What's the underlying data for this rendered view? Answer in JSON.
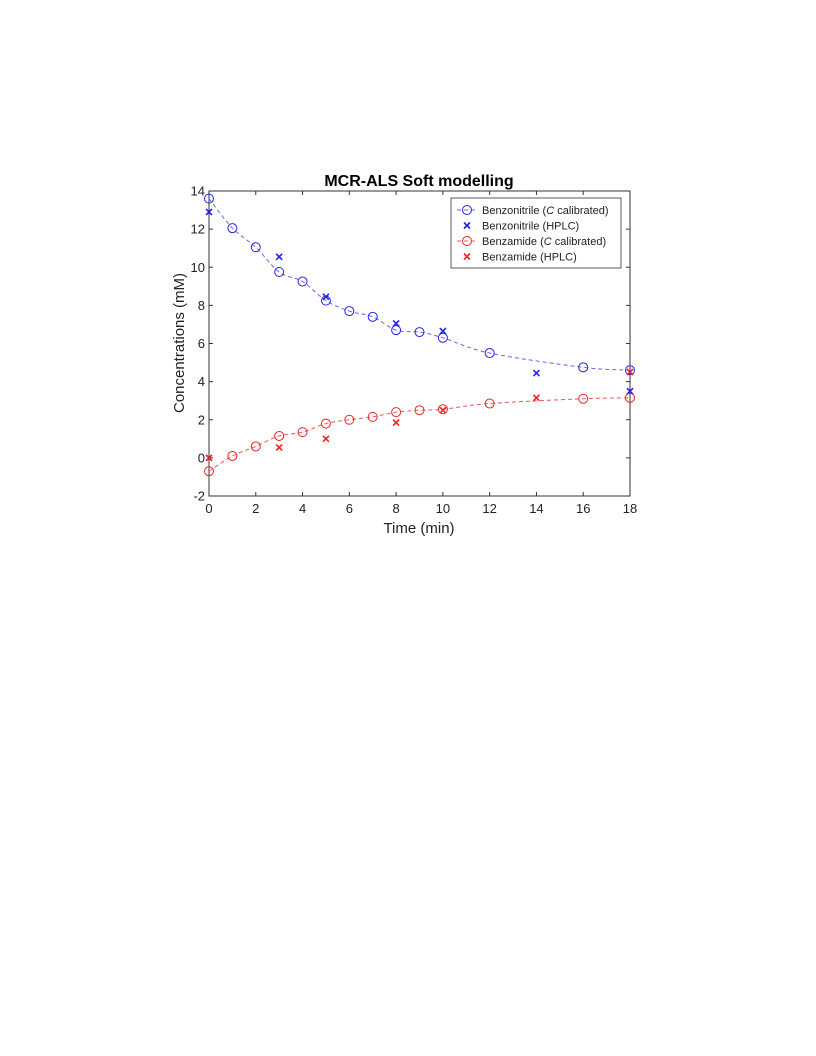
{
  "chart_data": {
    "type": "scatter",
    "title": "MCR-ALS Soft modelling",
    "xlabel": "Time (min)",
    "ylabel": "Concentrations (mM)",
    "xlim": [
      0,
      18
    ],
    "ylim": [
      -2,
      14
    ],
    "xticks": [
      0,
      2,
      4,
      6,
      8,
      10,
      12,
      14,
      16,
      18
    ],
    "yticks": [
      -2,
      0,
      2,
      4,
      6,
      8,
      10,
      12,
      14
    ],
    "grid": false,
    "legend_position": "top-right",
    "colors": {
      "blue": "#2222ee",
      "red": "#ee2222",
      "dashed_blue": "#6666ee",
      "dashed_red": "#ee5555"
    },
    "series": [
      {
        "name": "Benzonitrile (C calibrated)",
        "legend_prefix": "Benzonitrile (",
        "legend_italic": "C",
        "legend_suffix": " calibrated)",
        "marker": "circle",
        "line": "dashed",
        "color": "#2222ee",
        "x": [
          0,
          1,
          2,
          3,
          4,
          5,
          6,
          7,
          8,
          9,
          10,
          12,
          16,
          18
        ],
        "y": [
          13.6,
          12.05,
          11.05,
          9.75,
          9.25,
          8.25,
          7.7,
          7.4,
          6.7,
          6.6,
          6.3,
          5.5,
          4.75,
          4.6
        ]
      },
      {
        "name": "Benzonitrile (HPLC)",
        "legend_prefix": "Benzonitrile (HPLC)",
        "legend_italic": "",
        "legend_suffix": "",
        "marker": "x",
        "line": "none",
        "color": "#2222ee",
        "x": [
          0,
          3,
          5,
          8,
          10,
          14,
          18
        ],
        "y": [
          12.9,
          10.55,
          8.45,
          7.05,
          6.65,
          4.45,
          3.5
        ]
      },
      {
        "name": "Benzamide (C calibrated)",
        "legend_prefix": "Benzamide (",
        "legend_italic": "C",
        "legend_suffix": " calibrated)",
        "marker": "circle",
        "line": "dashed",
        "color": "#ee2222",
        "x": [
          0,
          1,
          2,
          3,
          4,
          5,
          6,
          7,
          8,
          9,
          10,
          12,
          16,
          18
        ],
        "y": [
          -0.7,
          0.1,
          0.6,
          1.15,
          1.35,
          1.8,
          2.0,
          2.15,
          2.4,
          2.5,
          2.55,
          2.85,
          3.1,
          3.15
        ]
      },
      {
        "name": "Benzamide (HPLC)",
        "legend_prefix": "Benzamide (HPLC)",
        "legend_italic": "",
        "legend_suffix": "",
        "marker": "x",
        "line": "none",
        "color": "#ee2222",
        "x": [
          0,
          3,
          5,
          8,
          10,
          14,
          18
        ],
        "y": [
          0.0,
          0.55,
          1.0,
          1.85,
          2.5,
          3.15,
          4.5
        ]
      }
    ]
  }
}
